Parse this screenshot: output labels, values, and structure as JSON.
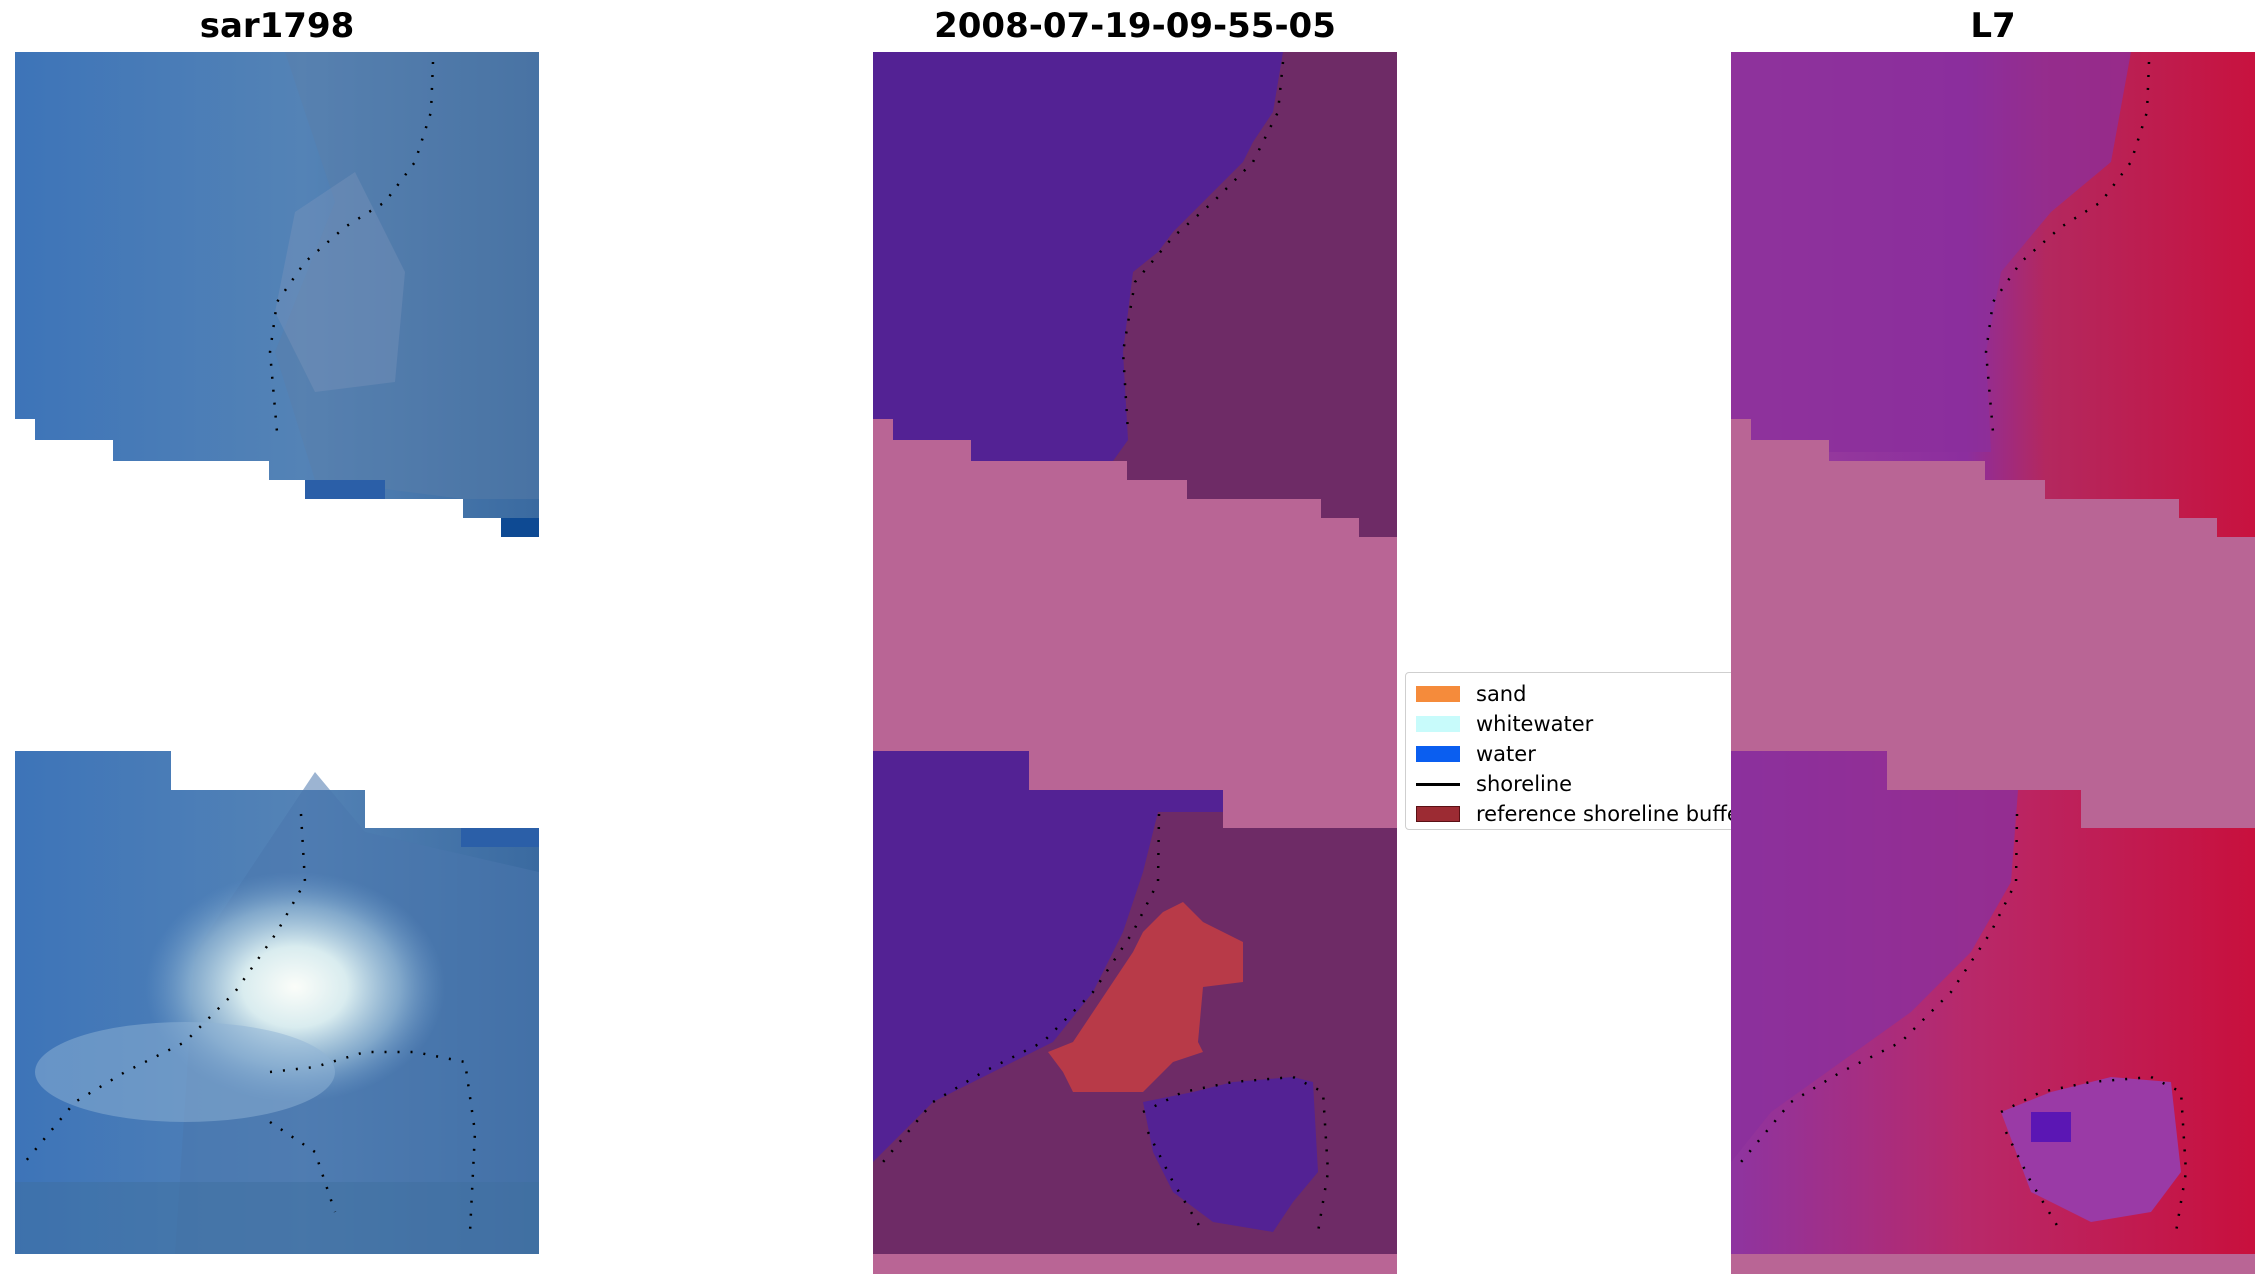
{
  "panels": [
    {
      "title": "sar1798"
    },
    {
      "title": "2008-07-19-09-55-05"
    },
    {
      "title": "L7"
    }
  ],
  "legend": {
    "items": [
      {
        "label": "sand",
        "color": "#f58b3b",
        "kind": "patch"
      },
      {
        "label": "whitewater",
        "color": "#c8fbfb",
        "kind": "patch"
      },
      {
        "label": "water",
        "color": "#0a5ef0",
        "kind": "patch"
      },
      {
        "label": "shoreline",
        "color": "#000000",
        "kind": "line"
      },
      {
        "label": "reference shoreline buffer",
        "color": "#9c2b33",
        "kind": "patch"
      }
    ]
  },
  "colors": {
    "rgb_land": "#4a7bb5",
    "rgb_bright": "#eef6f3",
    "class_water": "#532294",
    "class_land": "#6e2b66",
    "class_nodata": "#b96595",
    "class_buffer": "#b83a48",
    "mndwi_low": "#8d34a1",
    "mndwi_high": "#c5103f",
    "mndwi_nodata": "#b96595"
  }
}
